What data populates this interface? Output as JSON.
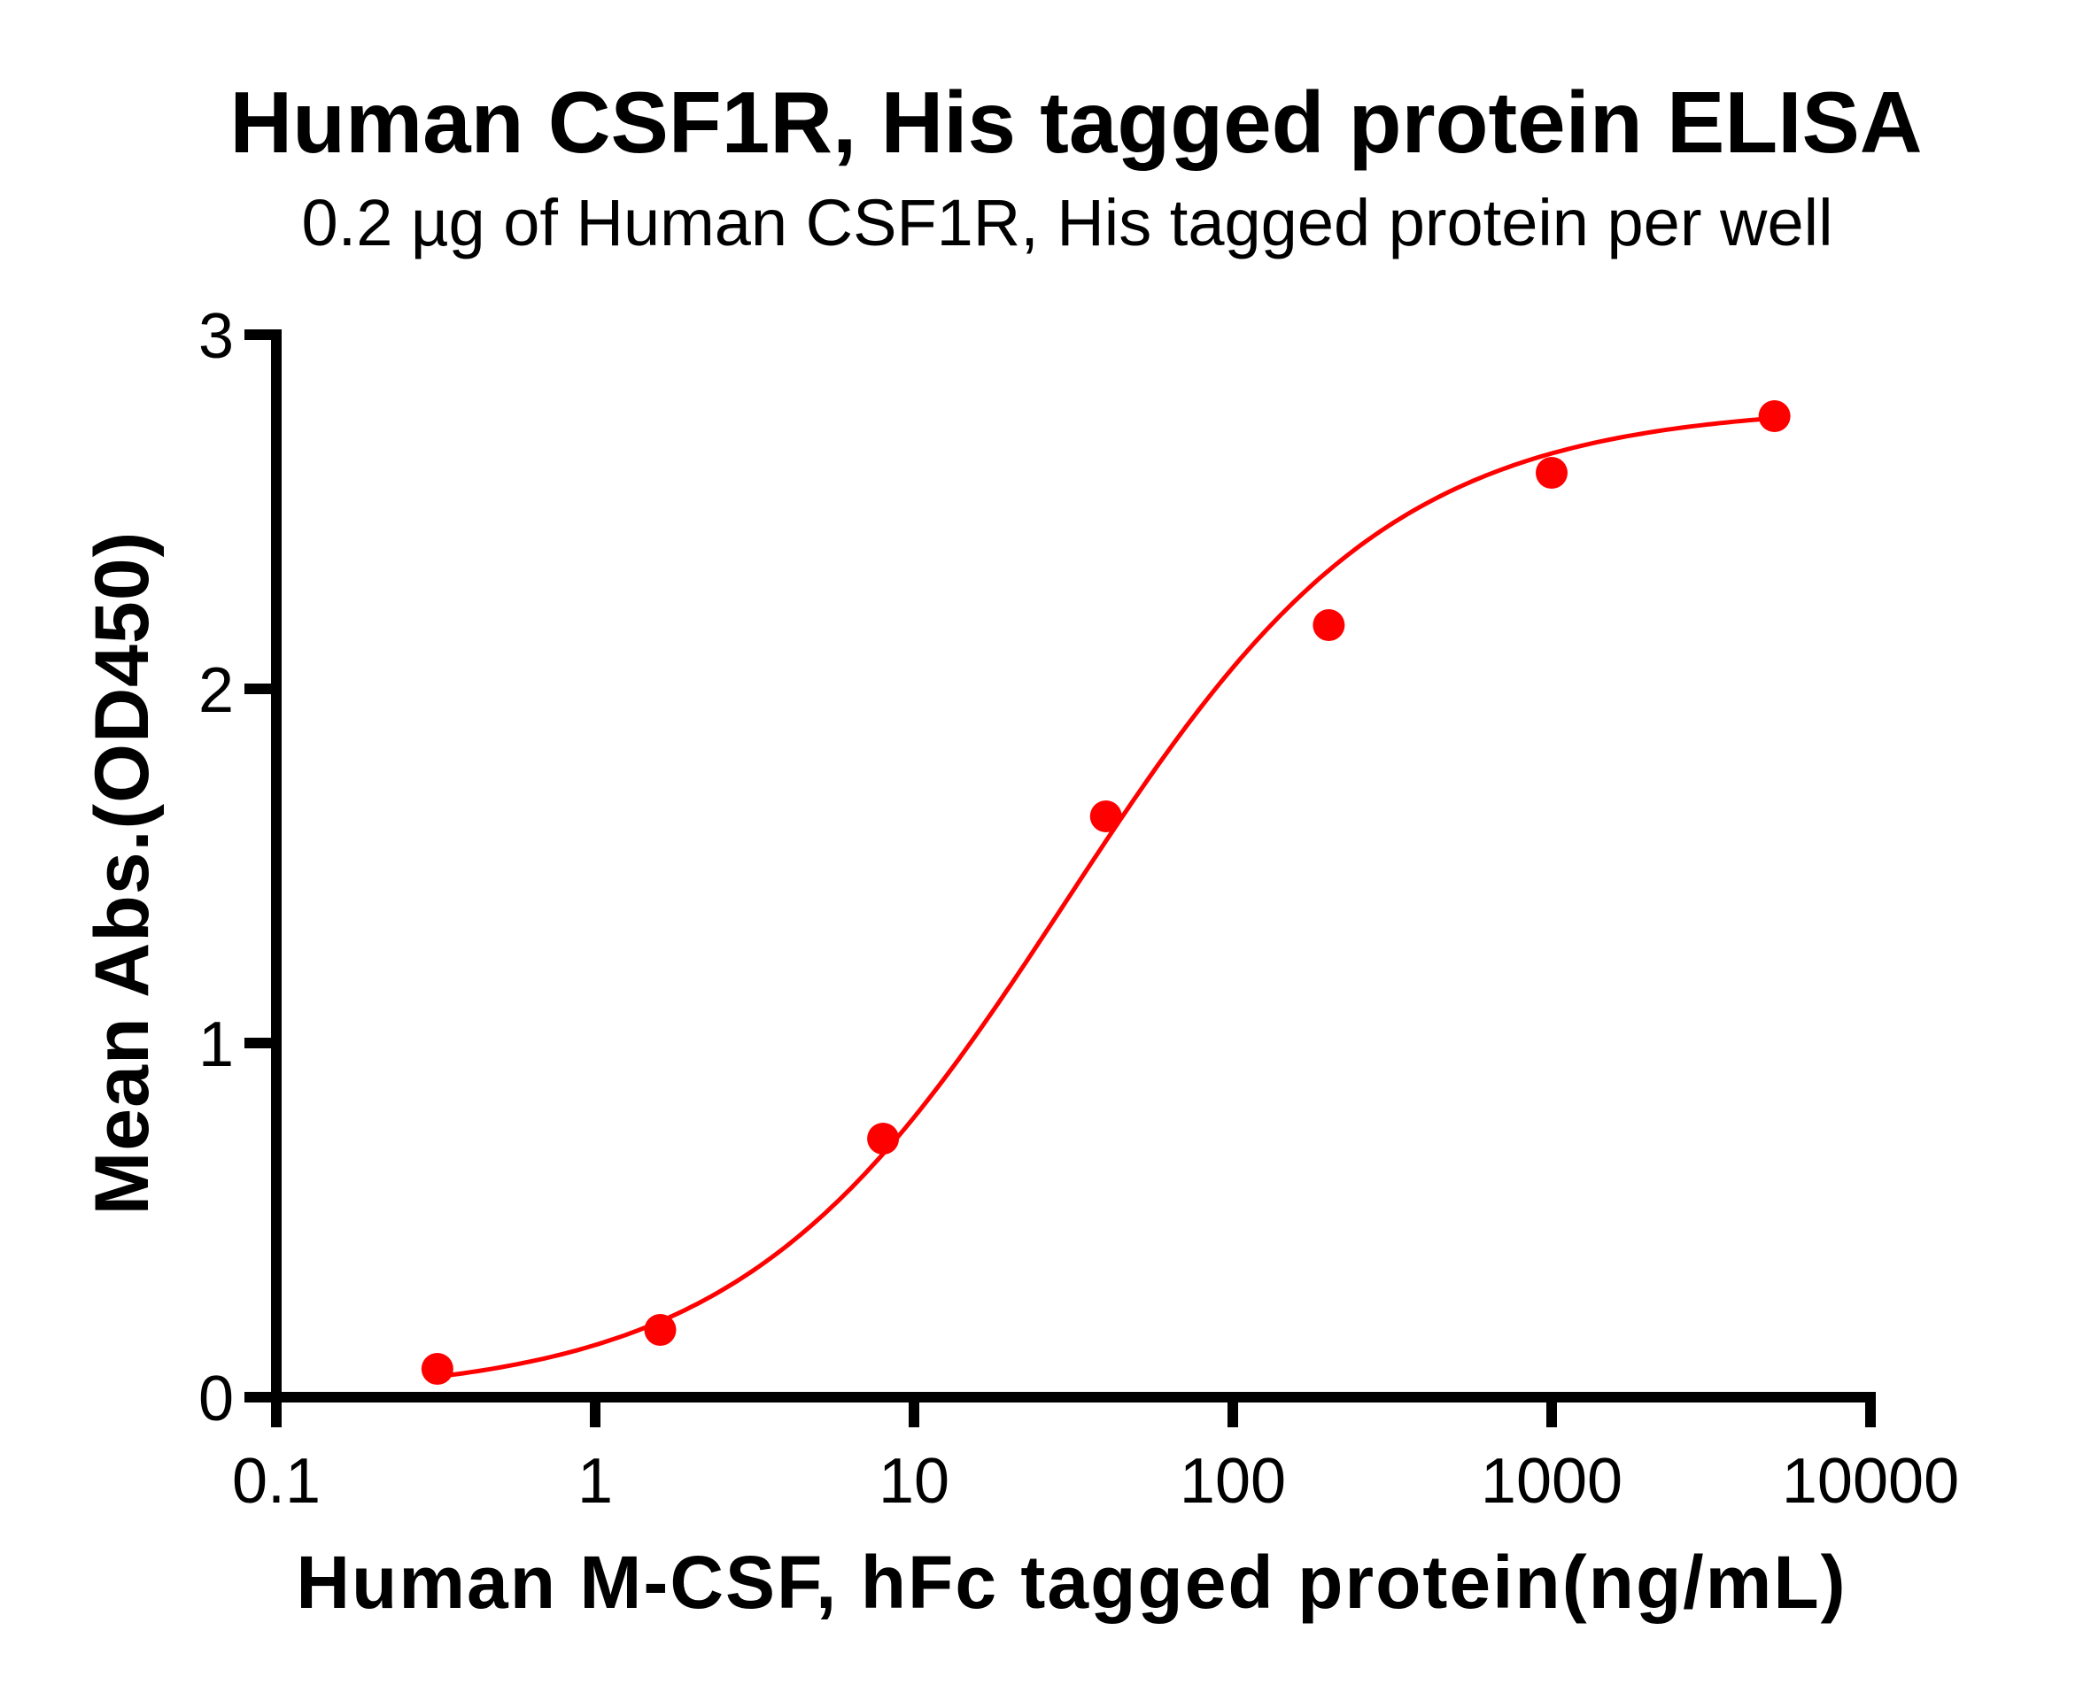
{
  "chart_data": {
    "type": "scatter",
    "title": "Human CSF1R, His tagged protein ELISA",
    "subtitle": "0.2 µg of Human CSF1R, His tagged protein per well",
    "xlabel": "Human M-CSF, hFc tagged protein(ng/mL)",
    "ylabel": "Mean Abs.(OD450)",
    "xscale": "log",
    "xlim": [
      0.1,
      10000
    ],
    "ylim": [
      0,
      3
    ],
    "xticks": [
      0.1,
      1,
      10,
      100,
      1000,
      10000
    ],
    "xtick_labels": [
      "0.1",
      "1",
      "10",
      "100",
      "1000",
      "10000"
    ],
    "yticks": [
      0,
      1,
      2,
      3
    ],
    "ytick_labels": [
      "0",
      "1",
      "2",
      "3"
    ],
    "grid": false,
    "legend": null,
    "series": [
      {
        "name": "Human M-CSF, hFc tagged protein",
        "color": "#ff0000",
        "marker": "circle",
        "x": [
          0.32,
          1.6,
          8,
          40,
          200,
          1000,
          5000
        ],
        "y": [
          0.08,
          0.19,
          0.73,
          1.64,
          2.18,
          2.61,
          2.77
        ]
      }
    ],
    "fit": {
      "type": "4PL",
      "color": "#ff0000",
      "bottom": 0.0,
      "top": 2.8,
      "ec50": 30,
      "hill": 0.85,
      "x_range": [
        0.32,
        5000
      ]
    }
  }
}
